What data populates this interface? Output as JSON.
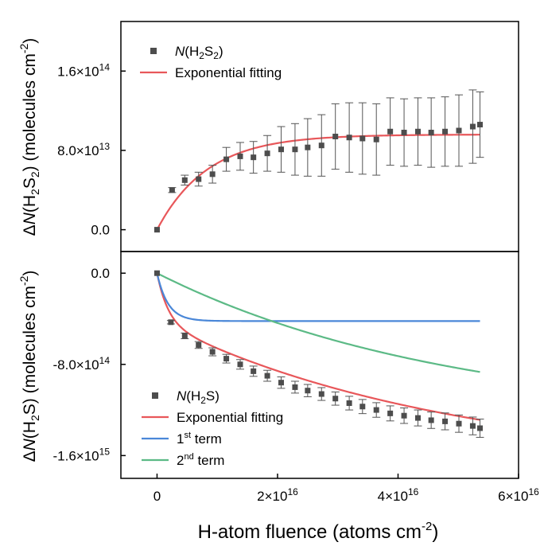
{
  "chart_data": [
    {
      "type": "scatter",
      "ylabel": "ΔN(H2S2) (molecules cm-2)",
      "xlim": [
        -6000000000000000.0,
        6e+16
      ],
      "ylim": [
        -22000000000000.0,
        210000000000000.0
      ],
      "yticks": [
        0,
        80000000000000.0,
        160000000000000.0
      ],
      "ytick_labels": [
        {
          "mant": "0.0",
          "exp": ""
        },
        {
          "mant": "8.0×10",
          "exp": "13"
        },
        {
          "mant": "1.6×10",
          "exp": "14"
        }
      ],
      "legend_position": "top-left",
      "series": [
        {
          "name": "N(H2S2)",
          "kind": "points",
          "color": "#4d4d4d",
          "x": [
            0,
            2500000000000000.0,
            4600000000000000.0,
            6900000000000000.0,
            9200000000000000.0,
            1.15e+16,
            1.38e+16,
            1.6e+16,
            1.83e+16,
            2.06e+16,
            2.29e+16,
            2.5e+16,
            2.73e+16,
            2.96e+16,
            3.19e+16,
            3.41e+16,
            3.64e+16,
            3.87e+16,
            4.1e+16,
            4.33e+16,
            4.55e+16,
            4.78e+16,
            5.01e+16,
            5.24e+16,
            5.36e+16
          ],
          "y": [
            0,
            40000000000000.0,
            50000000000000.0,
            51000000000000.0,
            56000000000000.0,
            71000000000000.0,
            74000000000000.0,
            73000000000000.0,
            77000000000000.0,
            81000000000000.0,
            81000000000000.0,
            83000000000000.0,
            85000000000000.0,
            94000000000000.0,
            93000000000000.0,
            92000000000000.0,
            91000000000000.0,
            99000000000000.0,
            98000000000000.0,
            99000000000000.0,
            98000000000000.0,
            99000000000000.0,
            100000000000000.0,
            104000000000000.0,
            106000000000000.0
          ],
          "err": [
            0,
            2500000000000.0,
            5000000000000.0,
            7000000000000.0,
            9000000000000.0,
            12000000000000.0,
            14000000000000.0,
            16000000000000.0,
            18000000000000.0,
            23000000000000.0,
            26000000000000.0,
            29000000000000.0,
            31000000000000.0,
            33000000000000.0,
            35000000000000.0,
            36000000000000.0,
            36000000000000.0,
            34000000000000.0,
            34000000000000.0,
            34000000000000.0,
            35000000000000.0,
            35000000000000.0,
            36000000000000.0,
            37000000000000.0,
            33000000000000.0
          ]
        },
        {
          "name": "Exponential fitting",
          "kind": "curve",
          "color": "#e8575a",
          "model": {
            "amplitude": 96000000000000.0,
            "sigma": 1.2e-16
          },
          "x_range": [
            0,
            5.36e+16
          ]
        }
      ]
    },
    {
      "type": "scatter",
      "ylabel": "ΔN(H2S) (molecules cm-2)",
      "xlabel": "H-atom fluence (atoms cm-2)",
      "xlim": [
        -6000000000000000.0,
        6e+16
      ],
      "ylim": [
        -1800000000000000.0,
        190000000000000.0
      ],
      "yticks": [
        0,
        -800000000000000.0,
        -1600000000000000.0
      ],
      "ytick_labels": [
        {
          "mant": "0.0",
          "exp": ""
        },
        {
          "mant": "-8.0×10",
          "exp": "14"
        },
        {
          "mant": "-1.6×10",
          "exp": "15"
        }
      ],
      "xticks": [
        0,
        2e+16,
        4e+16,
        6e+16
      ],
      "xtick_labels": [
        {
          "mant": "0",
          "exp": ""
        },
        {
          "mant": "2×10",
          "exp": "16"
        },
        {
          "mant": "4×10",
          "exp": "16"
        },
        {
          "mant": "6×10",
          "exp": "16"
        }
      ],
      "legend_position": "bottom-left",
      "series": [
        {
          "name": "N(H2S)",
          "kind": "points",
          "color": "#4d4d4d",
          "x": [
            0,
            2300000000000000.0,
            4600000000000000.0,
            6900000000000000.0,
            9200000000000000.0,
            1.15e+16,
            1.38e+16,
            1.6e+16,
            1.83e+16,
            2.06e+16,
            2.29e+16,
            2.5e+16,
            2.73e+16,
            2.96e+16,
            3.19e+16,
            3.41e+16,
            3.64e+16,
            3.87e+16,
            4.1e+16,
            4.33e+16,
            4.55e+16,
            4.78e+16,
            5.01e+16,
            5.24e+16,
            5.36e+16
          ],
          "y": [
            0,
            -430000000000000.0,
            -550000000000000.0,
            -630000000000000.0,
            -690000000000000.0,
            -750000000000000.0,
            -800000000000000.0,
            -860000000000000.0,
            -900000000000000.0,
            -960000000000000.0,
            -1000000000000000.0,
            -1030000000000000.0,
            -1060000000000000.0,
            -1100000000000000.0,
            -1140000000000000.0,
            -1170000000000000.0,
            -1200000000000000.0,
            -1230000000000000.0,
            -1250000000000000.0,
            -1270000000000000.0,
            -1290000000000000.0,
            -1300000000000000.0,
            -1320000000000000.0,
            -1340000000000000.0,
            -1360000000000000.0
          ],
          "err": [
            0,
            15000000000000.0,
            25000000000000.0,
            30000000000000.0,
            35000000000000.0,
            38000000000000.0,
            42000000000000.0,
            45000000000000.0,
            48000000000000.0,
            50000000000000.0,
            52000000000000.0,
            54000000000000.0,
            56000000000000.0,
            58000000000000.0,
            60000000000000.0,
            62000000000000.0,
            64000000000000.0,
            66000000000000.0,
            68000000000000.0,
            70000000000000.0,
            72000000000000.0,
            74000000000000.0,
            76000000000000.0,
            78000000000000.0,
            80000000000000.0
          ]
        },
        {
          "name": "Exponential fitting",
          "kind": "curve",
          "color": "#e8575a",
          "model": {
            "a1": 420000000000000.0,
            "s1": 5.5e-16,
            "a2": 1300000000000000.0,
            "s2": 2.05e-17
          },
          "x_range": [
            0,
            5.36e+16
          ]
        },
        {
          "name": "1st term",
          "kind": "curve",
          "color": "#4a87d8",
          "model": {
            "amplitude": 420000000000000.0,
            "sigma": 5.5e-16
          },
          "x_range": [
            0,
            5.36e+16
          ]
        },
        {
          "name": "2nd term",
          "kind": "curve",
          "color": "#5cba86",
          "model": {
            "amplitude": 1300000000000000.0,
            "sigma": 2.05e-17
          },
          "x_range": [
            0,
            5.36e+16
          ]
        }
      ]
    }
  ],
  "legend_top": [
    {
      "prefix": "N",
      "body": "(H",
      "sub": "2",
      "mid": "S",
      "sub2": "2",
      "tail": ")",
      "marker": "square",
      "color": "#4d4d4d"
    },
    {
      "text": "Exponential fitting",
      "marker": "line",
      "color": "#e8575a"
    }
  ],
  "legend_bottom": [
    {
      "prefix": "N",
      "body": "(H",
      "sub": "2",
      "mid": "S",
      "sub2": "",
      "tail": ")",
      "marker": "square",
      "color": "#4d4d4d"
    },
    {
      "text": "Exponential fitting",
      "marker": "line",
      "color": "#e8575a"
    },
    {
      "text": "1",
      "sup": "st",
      "text2": " term",
      "marker": "line",
      "color": "#4a87d8"
    },
    {
      "text": "2",
      "sup": "nd",
      "text2": " term",
      "marker": "line",
      "color": "#5cba86"
    }
  ],
  "axis_titles": {
    "x": {
      "text": "H-atom fluence (atoms cm",
      "sup": "-2",
      "tail": ")"
    },
    "y_top": {
      "delta": "Δ",
      "n": "N",
      "body": "(H",
      "sub1": "2",
      "mid": "S",
      "sub2": "2",
      "rest": ") (molecules cm",
      "sup": "-2",
      "tail": ")"
    },
    "y_bottom": {
      "delta": "Δ",
      "n": "N",
      "body": "(H",
      "sub1": "2",
      "mid": "S",
      "rest": ") (molecules cm",
      "sup": "-2",
      "tail": ")"
    }
  }
}
